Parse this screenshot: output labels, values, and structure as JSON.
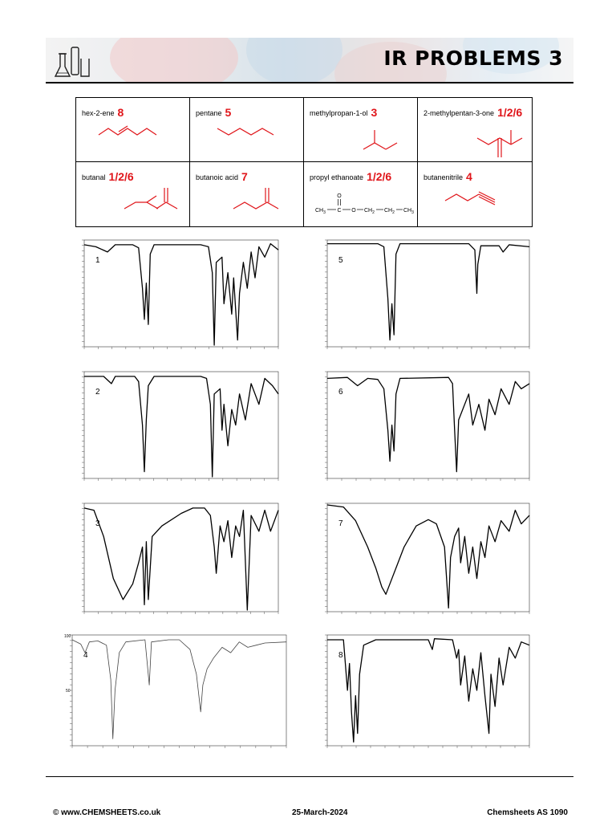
{
  "header": {
    "title": "IR PROBLEMS 3"
  },
  "compounds": [
    {
      "name": "hex-2-ene",
      "answer": "8"
    },
    {
      "name": "pentane",
      "answer": "5"
    },
    {
      "name": "methylpropan-1-ol",
      "answer": "3"
    },
    {
      "name": "2-methylpentan-3-one",
      "answer": "1/2/6"
    },
    {
      "name": "butanal",
      "answer": "1/2/6"
    },
    {
      "name": "butanoic acid",
      "answer": "7"
    },
    {
      "name": "propyl ethanoate",
      "answer": "1/2/6"
    },
    {
      "name": "butanenitrile",
      "answer": "4"
    }
  ],
  "ester_formula": {
    "o": "O",
    "ch3": "CH",
    "sub3": "3",
    "c": "C",
    "o2": "O",
    "ch2a": "CH",
    "ch2b": "CH",
    "ch3b": "CH",
    "sub2": "2"
  },
  "spectra": [
    {
      "label": "1"
    },
    {
      "label": "5"
    },
    {
      "label": "2"
    },
    {
      "label": "6"
    },
    {
      "label": "3"
    },
    {
      "label": "7"
    },
    {
      "label": "4"
    },
    {
      "label": "8"
    }
  ],
  "spectrum4_ticks": {
    "top": "100",
    "mid": "50"
  },
  "footer": {
    "left": "© www.CHEMSHEETS.co.uk",
    "center": "25-March-2024",
    "right": "Chemsheets AS 1090"
  },
  "colors": {
    "accent": "#e0151a",
    "skeleton": "#e0151a"
  }
}
